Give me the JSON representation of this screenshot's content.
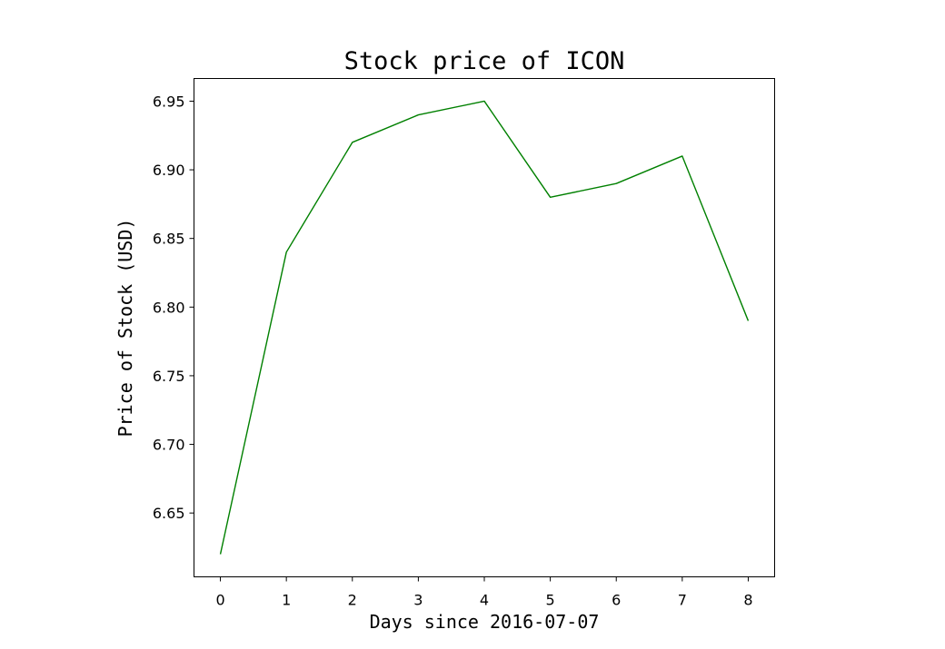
{
  "chart_data": {
    "type": "line",
    "title": "Stock price of ICON",
    "xlabel": "Days since 2016-07-07",
    "ylabel": "Price of Stock (USD)",
    "x": [
      0,
      1,
      2,
      3,
      4,
      5,
      6,
      7,
      8
    ],
    "series": [
      {
        "values": [
          6.62,
          6.84,
          6.92,
          6.94,
          6.95,
          6.88,
          6.89,
          6.91,
          6.79
        ],
        "color": "#008000"
      }
    ],
    "xticks": [
      "0",
      "1",
      "2",
      "3",
      "4",
      "5",
      "6",
      "7",
      "8"
    ],
    "yticks": [
      "6.65",
      "6.70",
      "6.75",
      "6.80",
      "6.85",
      "6.90",
      "6.95"
    ],
    "xlim": [
      -0.4,
      8.4
    ],
    "ylim": [
      6.6035,
      6.9665
    ],
    "grid": false,
    "legend": false
  }
}
